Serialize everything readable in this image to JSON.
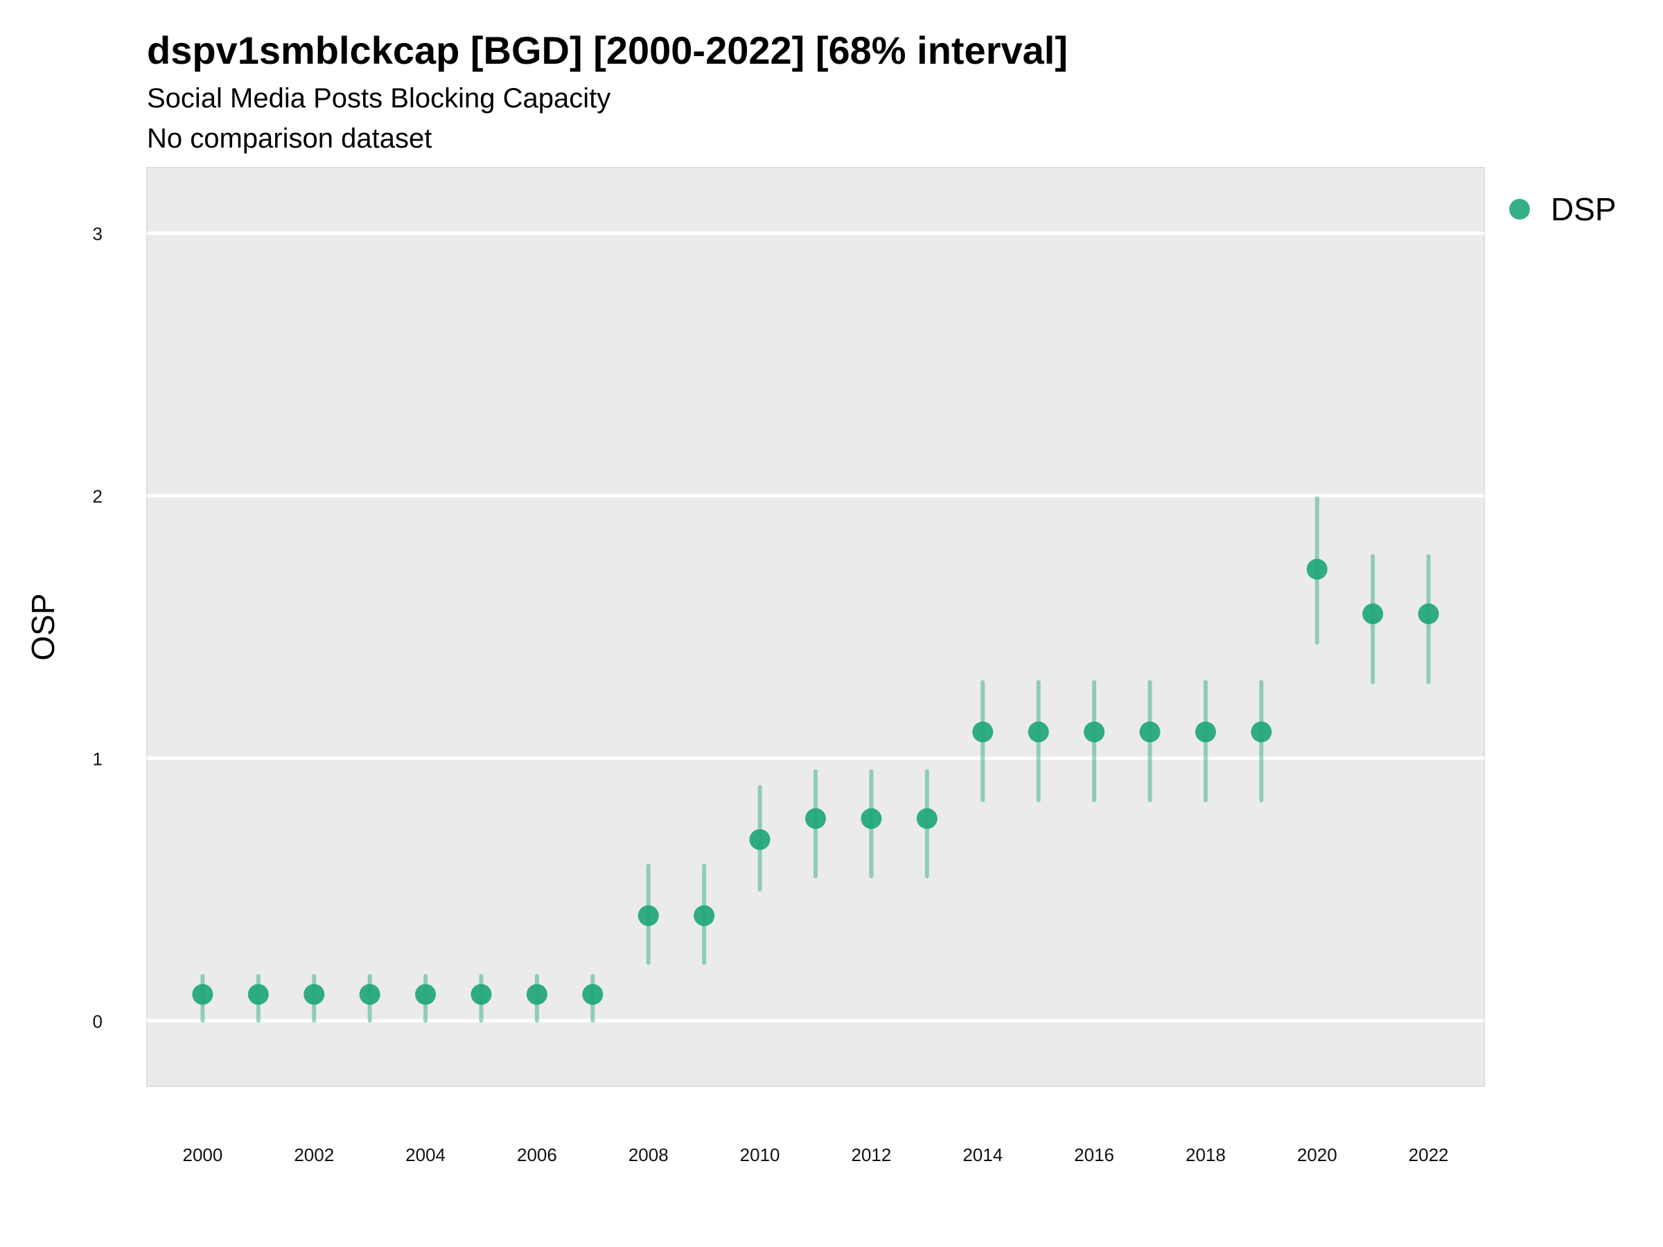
{
  "chart_data": {
    "type": "scatter",
    "title": "dspv1smblckcap [BGD] [2000-2022] [68% interval]",
    "subtitle": "Social Media Posts Blocking Capacity",
    "comparison_note": "No comparison dataset",
    "xlabel": "",
    "ylabel": "OSP",
    "xlim": [
      1999,
      2023
    ],
    "ylim": [
      -0.25,
      3.25
    ],
    "x_ticks": [
      2000,
      2002,
      2004,
      2006,
      2008,
      2010,
      2012,
      2014,
      2016,
      2018,
      2020,
      2022
    ],
    "y_ticks": [
      0,
      1,
      2,
      3
    ],
    "grid": true,
    "legend_position": "top-right",
    "series": [
      {
        "name": "DSP",
        "color": "#1fa67a",
        "points": [
          {
            "x": 2000,
            "y": 0.1,
            "lower": 0.0,
            "upper": 0.17
          },
          {
            "x": 2001,
            "y": 0.1,
            "lower": 0.0,
            "upper": 0.17
          },
          {
            "x": 2002,
            "y": 0.1,
            "lower": 0.0,
            "upper": 0.17
          },
          {
            "x": 2003,
            "y": 0.1,
            "lower": 0.0,
            "upper": 0.17
          },
          {
            "x": 2004,
            "y": 0.1,
            "lower": 0.0,
            "upper": 0.17
          },
          {
            "x": 2005,
            "y": 0.1,
            "lower": 0.0,
            "upper": 0.17
          },
          {
            "x": 2006,
            "y": 0.1,
            "lower": 0.0,
            "upper": 0.17
          },
          {
            "x": 2007,
            "y": 0.1,
            "lower": 0.0,
            "upper": 0.17
          },
          {
            "x": 2008,
            "y": 0.4,
            "lower": 0.22,
            "upper": 0.59
          },
          {
            "x": 2009,
            "y": 0.4,
            "lower": 0.22,
            "upper": 0.59
          },
          {
            "x": 2010,
            "y": 0.69,
            "lower": 0.5,
            "upper": 0.89
          },
          {
            "x": 2011,
            "y": 0.77,
            "lower": 0.55,
            "upper": 0.95
          },
          {
            "x": 2012,
            "y": 0.77,
            "lower": 0.55,
            "upper": 0.95
          },
          {
            "x": 2013,
            "y": 0.77,
            "lower": 0.55,
            "upper": 0.95
          },
          {
            "x": 2014,
            "y": 1.1,
            "lower": 0.84,
            "upper": 1.29
          },
          {
            "x": 2015,
            "y": 1.1,
            "lower": 0.84,
            "upper": 1.29
          },
          {
            "x": 2016,
            "y": 1.1,
            "lower": 0.84,
            "upper": 1.29
          },
          {
            "x": 2017,
            "y": 1.1,
            "lower": 0.84,
            "upper": 1.29
          },
          {
            "x": 2018,
            "y": 1.1,
            "lower": 0.84,
            "upper": 1.29
          },
          {
            "x": 2019,
            "y": 1.1,
            "lower": 0.84,
            "upper": 1.29
          },
          {
            "x": 2020,
            "y": 1.72,
            "lower": 1.44,
            "upper": 1.99
          },
          {
            "x": 2021,
            "y": 1.55,
            "lower": 1.29,
            "upper": 1.77
          },
          {
            "x": 2022,
            "y": 1.55,
            "lower": 1.29,
            "upper": 1.77
          }
        ]
      }
    ]
  }
}
